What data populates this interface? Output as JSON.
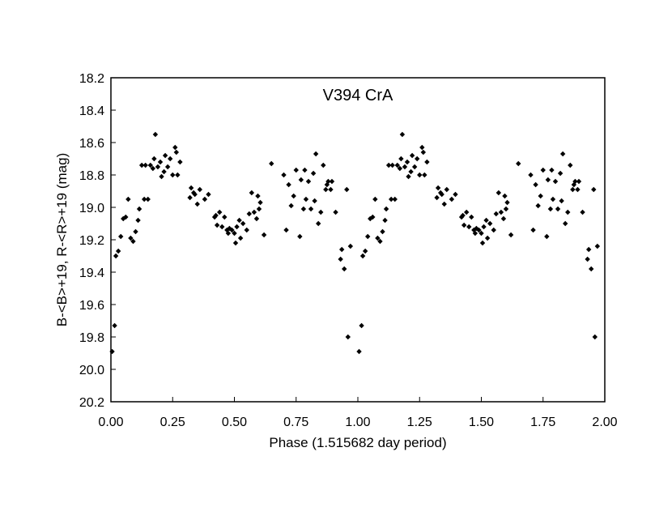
{
  "chart_data": {
    "type": "scatter",
    "title": "V394 CrA",
    "xlabel": "Phase (1.515682 day period)",
    "ylabel": "B-<B>+19, R-<R>+19 (mag)",
    "xlim": [
      0,
      2
    ],
    "ylim": [
      18.2,
      20.2
    ],
    "y_inverted": true,
    "xticks": [
      "0.00",
      "0.25",
      "0.50",
      "0.75",
      "1.00",
      "1.25",
      "1.50",
      "1.75",
      "2.00"
    ],
    "yticks": [
      "18.2",
      "18.4",
      "18.6",
      "18.8",
      "19.0",
      "19.2",
      "19.4",
      "19.6",
      "19.8",
      "20.0",
      "20.2"
    ],
    "grid": false,
    "marker": "diamond",
    "marker_color": "#000000",
    "points_phase_0_to_1": [
      [
        0.005,
        19.89
      ],
      [
        0.015,
        19.73
      ],
      [
        0.02,
        19.3
      ],
      [
        0.03,
        19.27
      ],
      [
        0.04,
        19.18
      ],
      [
        0.05,
        19.07
      ],
      [
        0.06,
        19.06
      ],
      [
        0.07,
        18.95
      ],
      [
        0.08,
        19.19
      ],
      [
        0.09,
        19.21
      ],
      [
        0.1,
        19.15
      ],
      [
        0.11,
        19.08
      ],
      [
        0.115,
        19.01
      ],
      [
        0.125,
        18.74
      ],
      [
        0.135,
        18.95
      ],
      [
        0.14,
        18.74
      ],
      [
        0.15,
        18.95
      ],
      [
        0.16,
        18.74
      ],
      [
        0.17,
        18.76
      ],
      [
        0.175,
        18.7
      ],
      [
        0.18,
        18.55
      ],
      [
        0.19,
        18.75
      ],
      [
        0.2,
        18.72
      ],
      [
        0.205,
        18.81
      ],
      [
        0.215,
        18.78
      ],
      [
        0.22,
        18.68
      ],
      [
        0.23,
        18.75
      ],
      [
        0.24,
        18.7
      ],
      [
        0.25,
        18.8
      ],
      [
        0.26,
        18.63
      ],
      [
        0.265,
        18.66
      ],
      [
        0.27,
        18.8
      ],
      [
        0.28,
        18.72
      ],
      [
        0.32,
        18.94
      ],
      [
        0.325,
        18.88
      ],
      [
        0.335,
        18.91
      ],
      [
        0.34,
        18.92
      ],
      [
        0.35,
        18.98
      ],
      [
        0.36,
        18.89
      ],
      [
        0.38,
        18.95
      ],
      [
        0.395,
        18.92
      ],
      [
        0.42,
        19.06
      ],
      [
        0.425,
        19.05
      ],
      [
        0.43,
        19.11
      ],
      [
        0.44,
        19.03
      ],
      [
        0.45,
        19.12
      ],
      [
        0.46,
        19.06
      ],
      [
        0.47,
        19.14
      ],
      [
        0.475,
        19.16
      ],
      [
        0.48,
        19.13
      ],
      [
        0.49,
        19.14
      ],
      [
        0.5,
        19.16
      ],
      [
        0.505,
        19.22
      ],
      [
        0.51,
        19.12
      ],
      [
        0.52,
        19.08
      ],
      [
        0.525,
        19.19
      ],
      [
        0.535,
        19.1
      ],
      [
        0.55,
        19.14
      ],
      [
        0.56,
        19.04
      ],
      [
        0.57,
        18.91
      ],
      [
        0.58,
        19.03
      ],
      [
        0.59,
        19.07
      ],
      [
        0.595,
        18.93
      ],
      [
        0.6,
        19.01
      ],
      [
        0.605,
        18.97
      ],
      [
        0.62,
        19.17
      ],
      [
        0.65,
        18.73
      ],
      [
        0.7,
        18.8
      ],
      [
        0.71,
        19.14
      ],
      [
        0.72,
        18.86
      ],
      [
        0.73,
        18.99
      ],
      [
        0.74,
        18.93
      ],
      [
        0.75,
        18.77
      ],
      [
        0.765,
        19.18
      ],
      [
        0.77,
        18.83
      ],
      [
        0.78,
        19.01
      ],
      [
        0.785,
        18.77
      ],
      [
        0.79,
        18.95
      ],
      [
        0.8,
        18.84
      ],
      [
        0.81,
        19.01
      ],
      [
        0.82,
        18.79
      ],
      [
        0.825,
        18.96
      ],
      [
        0.83,
        18.67
      ],
      [
        0.84,
        19.1
      ],
      [
        0.85,
        19.03
      ],
      [
        0.86,
        18.74
      ],
      [
        0.87,
        18.89
      ],
      [
        0.875,
        18.86
      ],
      [
        0.88,
        18.84
      ],
      [
        0.89,
        18.89
      ],
      [
        0.895,
        18.84
      ],
      [
        0.91,
        19.03
      ],
      [
        0.93,
        19.32
      ],
      [
        0.935,
        19.26
      ],
      [
        0.945,
        19.38
      ],
      [
        0.955,
        18.89
      ],
      [
        0.96,
        19.8
      ],
      [
        0.97,
        19.24
      ]
    ],
    "points_plotted_phase_plus_1": true
  }
}
